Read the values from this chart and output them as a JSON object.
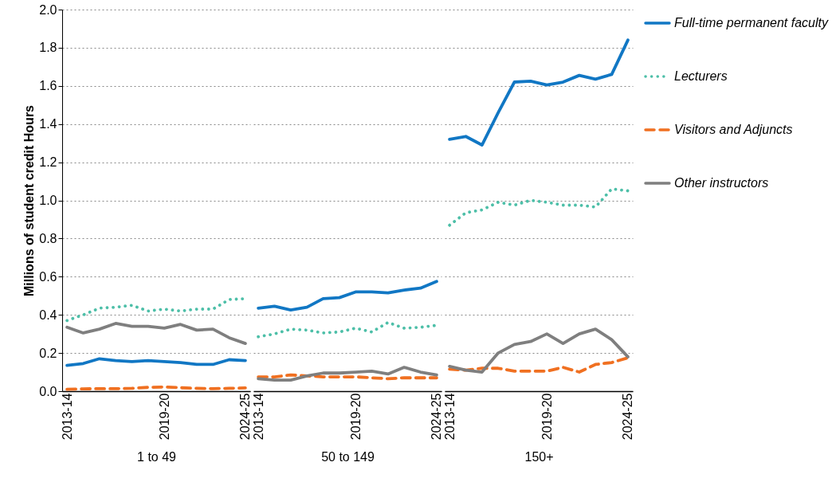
{
  "chart_data": [
    {
      "type": "line",
      "xlabel": "1 to 49",
      "ylabel": "Millions of student credit Hours",
      "categories": [
        "2013-14",
        null,
        null,
        null,
        null,
        null,
        "2019-20",
        null,
        null,
        null,
        null,
        "2024-25"
      ],
      "ylim": [
        0,
        2
      ],
      "yticks": [
        {
          "value": 0,
          "label": "0.0"
        },
        {
          "value": 0.2,
          "label": "0.2"
        },
        {
          "value": 0.4,
          "label": "0.4"
        },
        {
          "value": 0.6,
          "label": "0.6"
        },
        {
          "value": 0.8,
          "label": "0.8"
        },
        {
          "value": 1,
          "label": "1.0"
        },
        {
          "value": 1.2,
          "label": "1.2"
        },
        {
          "value": 1.4,
          "label": "1.4"
        },
        {
          "value": 1.6,
          "label": "1.6"
        },
        {
          "value": 1.8,
          "label": "1.8"
        },
        {
          "value": 2,
          "label": "2.0"
        }
      ],
      "grid": "y",
      "legend": false,
      "series": [
        {
          "color": "#1177c4",
          "line_style": "solid",
          "values": [
            0.135,
            0.145,
            0.17,
            0.16,
            0.155,
            0.16,
            0.155,
            0.15,
            0.14,
            0.14,
            0.165,
            0.16
          ]
        },
        {
          "color": "#4dbfa8",
          "line_style": "dotted",
          "values": [
            0.37,
            0.4,
            0.435,
            0.44,
            0.45,
            0.42,
            0.43,
            0.42,
            0.43,
            0.43,
            0.48,
            0.485
          ]
        },
        {
          "color": "#f07021",
          "line_style": "dashed",
          "values": [
            0.01,
            0.012,
            0.013,
            0.013,
            0.015,
            0.02,
            0.022,
            0.018,
            0.015,
            0.013,
            0.015,
            0.017
          ]
        },
        {
          "color": "#7f7f7f",
          "line_style": "solid",
          "values": [
            0.335,
            0.305,
            0.325,
            0.355,
            0.34,
            0.34,
            0.33,
            0.35,
            0.32,
            0.325,
            0.28,
            0.25
          ]
        }
      ]
    },
    {
      "type": "line",
      "xlabel": "50 to 149",
      "categories": [
        "2013-14",
        null,
        null,
        null,
        null,
        null,
        "2019-20",
        null,
        null,
        null,
        null,
        "2024-25"
      ],
      "ylim": [
        0,
        2
      ],
      "grid": "y",
      "legend": false,
      "tick_labels": "x",
      "series": [
        {
          "color": "#1177c4",
          "line_style": "solid",
          "values": [
            0.435,
            0.445,
            0.425,
            0.44,
            0.485,
            0.49,
            0.52,
            0.52,
            0.515,
            0.53,
            0.54,
            0.575
          ]
        },
        {
          "color": "#4dbfa8",
          "line_style": "dotted",
          "values": [
            0.285,
            0.3,
            0.325,
            0.32,
            0.305,
            0.31,
            0.33,
            0.31,
            0.36,
            0.33,
            0.335,
            0.345
          ]
        },
        {
          "color": "#f07021",
          "line_style": "dashed",
          "values": [
            0.075,
            0.075,
            0.085,
            0.08,
            0.075,
            0.075,
            0.075,
            0.07,
            0.065,
            0.07,
            0.07,
            0.07
          ]
        },
        {
          "color": "#7f7f7f",
          "line_style": "solid",
          "values": [
            0.065,
            0.058,
            0.058,
            0.08,
            0.095,
            0.095,
            0.1,
            0.105,
            0.09,
            0.125,
            0.1,
            0.085
          ]
        }
      ]
    },
    {
      "type": "line",
      "xlabel": "150+",
      "categories": [
        "2013-14",
        null,
        null,
        null,
        null,
        null,
        "2019-20",
        null,
        null,
        null,
        null,
        "2024-25"
      ],
      "ylim": [
        0,
        2
      ],
      "grid": "y",
      "legend": "right",
      "tick_labels": "x",
      "series": [
        {
          "name": "Full-time permanent faculty",
          "color": "#1177c4",
          "line_style": "solid",
          "values": [
            1.32,
            1.335,
            1.29,
            1.46,
            1.62,
            1.625,
            1.605,
            1.62,
            1.655,
            1.635,
            1.66,
            1.84
          ]
        },
        {
          "name": "Lecturers",
          "color": "#4dbfa8",
          "line_style": "dotted",
          "values": [
            0.87,
            0.935,
            0.95,
            0.99,
            0.975,
            1.0,
            0.99,
            0.975,
            0.975,
            0.965,
            1.06,
            1.05
          ]
        },
        {
          "name": "Visitors and Adjuncts",
          "color": "#f07021",
          "line_style": "dashed",
          "values": [
            0.115,
            0.11,
            0.12,
            0.12,
            0.105,
            0.105,
            0.105,
            0.125,
            0.1,
            0.14,
            0.15,
            0.175
          ]
        },
        {
          "name": "Other instructors",
          "color": "#7f7f7f",
          "line_style": "solid",
          "values": [
            0.13,
            0.11,
            0.1,
            0.2,
            0.245,
            0.26,
            0.3,
            0.25,
            0.3,
            0.325,
            0.27,
            0.18
          ]
        }
      ]
    }
  ]
}
